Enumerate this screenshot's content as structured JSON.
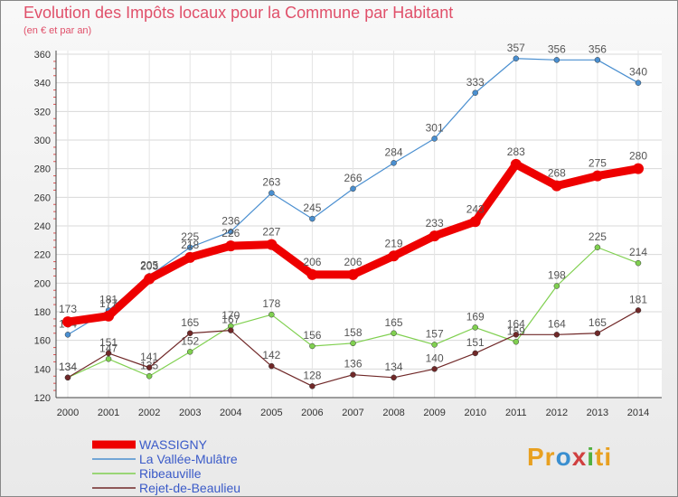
{
  "title": "Evolution des Impôts locaux pour la Commune par Habitant",
  "subtitle": "(en € et par an)",
  "logo": {
    "parts": [
      "Pr",
      "o",
      "x",
      "i",
      "ti"
    ],
    "colors": [
      "#e8a020",
      "#3a8fd0",
      "#d04040",
      "#50b040",
      "#e8a020"
    ]
  },
  "chart_data": {
    "type": "line",
    "x": [
      2000,
      2001,
      2002,
      2003,
      2004,
      2005,
      2006,
      2007,
      2008,
      2009,
      2010,
      2011,
      2012,
      2013,
      2014
    ],
    "ylim": [
      120,
      360
    ],
    "yticks": [
      120,
      140,
      160,
      180,
      200,
      220,
      240,
      260,
      280,
      300,
      320,
      340,
      360
    ],
    "grid": true,
    "legend": "bottom-left",
    "series": [
      {
        "name": "La Vallée-Mulâtre",
        "color": "#4a8fd0",
        "values": [
          164,
          181,
          205,
          225,
          236,
          263,
          245,
          266,
          284,
          301,
          333,
          357,
          356,
          356,
          340
        ]
      },
      {
        "name": "Ribeauville",
        "color": "#80d050",
        "values": [
          134,
          147,
          135,
          152,
          170,
          178,
          156,
          158,
          165,
          157,
          169,
          159,
          198,
          225,
          214
        ]
      },
      {
        "name": "Rejet-de-Beaulieu",
        "color": "#702828",
        "values": [
          134,
          151,
          141,
          165,
          167,
          142,
          128,
          136,
          134,
          140,
          151,
          164,
          164,
          165,
          181
        ]
      },
      {
        "name": "WASSIGNY",
        "color": "#ee0000",
        "values": [
          173,
          177,
          203,
          218,
          226,
          227,
          206,
          206,
          219,
          233,
          243,
          283,
          268,
          275,
          280
        ]
      }
    ]
  }
}
